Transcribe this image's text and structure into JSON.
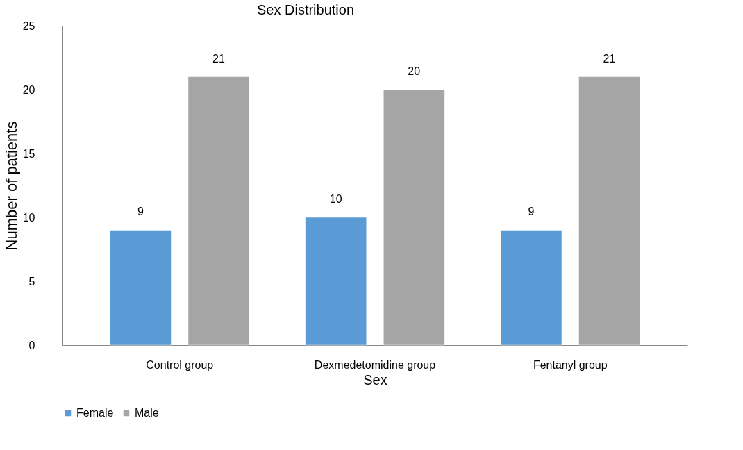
{
  "chart_data": {
    "type": "bar",
    "title": "Sex Distribution",
    "xlabel": "Sex",
    "ylabel": "Number of patients",
    "categories": [
      "Control group",
      "Dexmedetomidine group",
      "Fentanyl group"
    ],
    "series": [
      {
        "name": "Female",
        "color": "#5b9bd5",
        "values": [
          9,
          10,
          9
        ]
      },
      {
        "name": "Male",
        "color": "#a5a5a5",
        "values": [
          21,
          20,
          21
        ]
      }
    ],
    "ylim": [
      0,
      25
    ],
    "yticks": [
      0,
      5,
      10,
      15,
      20,
      25
    ],
    "grid": false,
    "legend": "bottom",
    "data_labels": true
  }
}
